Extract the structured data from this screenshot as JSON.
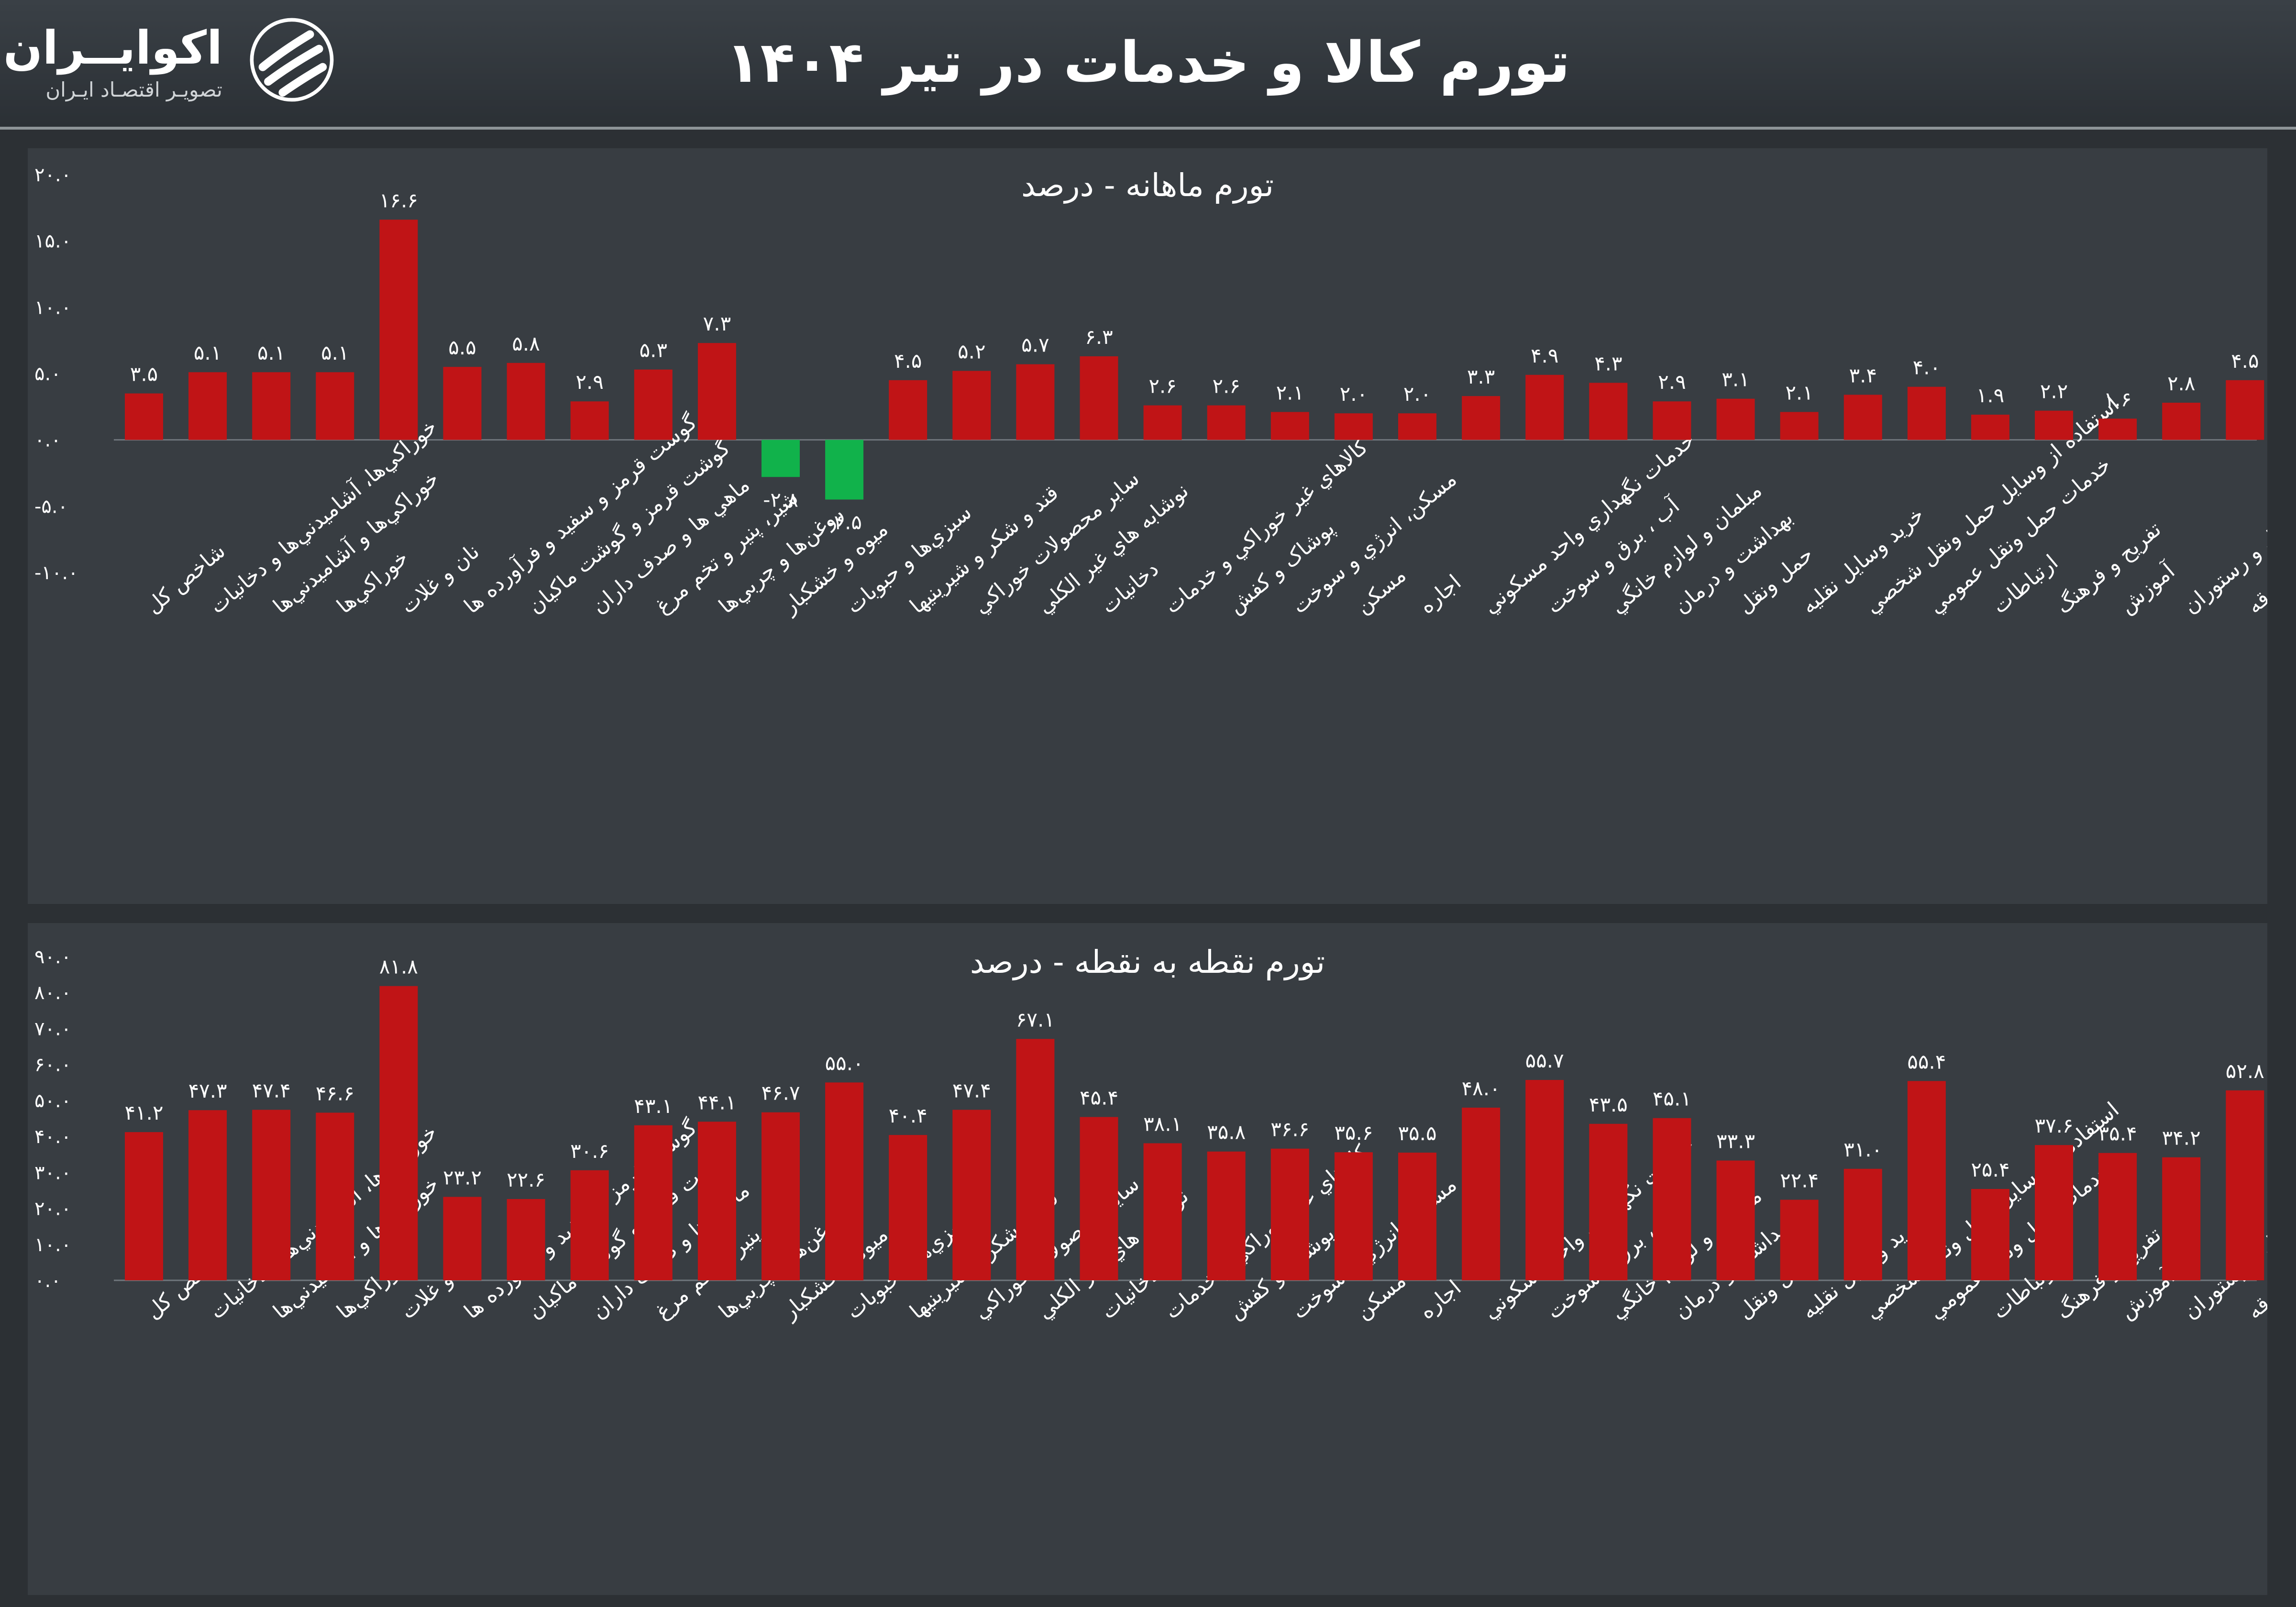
{
  "header": {
    "title": "تورم کالا و خدمات در تیر ۱۴۰۴",
    "brand_name": "اکوایــران",
    "brand_tagline": "تصویـر اقتصـاد ایـران"
  },
  "colors": {
    "positive_bar": "#c01416",
    "negative_bar": "#11b24b",
    "text": "#ffffff",
    "panel_bg": "#383d42"
  },
  "chart_data": [
    {
      "type": "bar",
      "title": "تورم ماهانه - درصد",
      "ylim": [
        -10,
        20
      ],
      "yticks": [
        -10,
        -5,
        0,
        5,
        10,
        15,
        20
      ],
      "ytick_labels": [
        "-۱۰.۰",
        "-۵.۰",
        "۰.۰",
        "۵.۰",
        "۱۰.۰",
        "۱۵.۰",
        "۲۰.۰"
      ],
      "categories": [
        "شاخص کل",
        "خوراکي‌ها، آشاميدني‌ها و دخانيات",
        "خوراکي‌ها و آشاميدني‌ها",
        "خوراکي‌ها",
        "نان و غلات",
        "گوشت قرمز و سفيد و فرآورده ها",
        "گوشت قرمز و گوشت ماکيان",
        "ماهي ها و صدف داران",
        "شير، پنير و تخم مرغ",
        "روغن‌ها و چربي‌ها",
        "ميوه و خشکبار",
        "سبزي‌ها و حبوبات",
        "قند و شکر و شيرينيها",
        "ساير محصولات خوراکي",
        "نوشابه هاي غير الکلي",
        "دخانيات",
        "کالاهاي غير خوراکي و خدمات",
        "پوشاک و کفش",
        "مسکن، انرژي و سوخت",
        "مسکن",
        "اجاره",
        "خدمات نگهداري واحد مسکوني",
        "آب ، برق و سوخت",
        "مبلمان و لوازم خانگي",
        "بهداشت و درمان",
        "حمل ونقل",
        "خريد وسايل نقليه",
        "استفاده از وسايل حمل ونقل شخصي",
        "خدمات حمل ونقل عمومي",
        "ارتباطات",
        "تفريح و فرهنگ",
        "آموزش",
        "هتل و رستوران",
        "کالاها و خدمات متفرقه"
      ],
      "values": [
        3.5,
        5.1,
        5.1,
        5.1,
        16.6,
        5.5,
        5.8,
        2.9,
        5.3,
        7.3,
        -2.8,
        -4.5,
        4.5,
        5.2,
        5.7,
        6.3,
        2.6,
        2.6,
        2.1,
        2.0,
        2.0,
        3.3,
        4.9,
        4.3,
        2.9,
        3.1,
        2.1,
        3.4,
        4.0,
        1.9,
        2.2,
        1.6,
        2.8,
        4.5
      ],
      "value_labels": [
        "۳.۵",
        "۵.۱",
        "۵.۱",
        "۵.۱",
        "۱۶.۶",
        "۵.۵",
        "۵.۸",
        "۲.۹",
        "۵.۳",
        "۷.۳",
        "-۲.۸",
        "-۴.۵",
        "۴.۵",
        "۵.۲",
        "۵.۷",
        "۶.۳",
        "۲.۶",
        "۲.۶",
        "۲.۱",
        "۲.۰",
        "۲.۰",
        "۳.۳",
        "۴.۹",
        "۴.۳",
        "۲.۹",
        "۳.۱",
        "۲.۱",
        "۳.۴",
        "۴.۰",
        "۱.۹",
        "۲.۲",
        "۱.۶",
        "۲.۸",
        "۴.۵"
      ]
    },
    {
      "type": "bar",
      "title": "تورم نقطه به نقطه - درصد",
      "ylim": [
        0,
        90
      ],
      "yticks": [
        0,
        10,
        20,
        30,
        40,
        50,
        60,
        70,
        80,
        90
      ],
      "ytick_labels": [
        "۰.۰",
        "۱۰.۰",
        "۲۰.۰",
        "۳۰.۰",
        "۴۰.۰",
        "۵۰.۰",
        "۶۰.۰",
        "۷۰.۰",
        "۸۰.۰",
        "۹۰.۰"
      ],
      "categories": [
        "شاخص کل",
        "خوراکي‌ها، آشاميدني‌ها و دخانيات",
        "خوراکي‌ها و آشاميدني‌ها",
        "خوراکي‌ها",
        "نان و غلات",
        "گوشت قرمز و سفيد و فرآورده ها",
        "گوشت قرمز و گوشت ماکيان",
        "ماهي ها و صدف داران",
        "شير، پنير و تخم مرغ",
        "روغن‌ها و چربي‌ها",
        "ميوه و خشکبار",
        "سبزي‌ها و حبوبات",
        "قند و شکر و شيرينيها",
        "ساير محصولات خوراکي",
        "نوشابه هاي غير الکلي",
        "دخانيات",
        "کالاهاي غير خوراکي و خدمات",
        "پوشاک و کفش",
        "مسکن، انرژي و سوخت",
        "مسکن",
        "اجاره",
        "خدمات نگهداري واحد مسکوني",
        "آب ، برق و سوخت",
        "مبلمان و لوازم خانگي",
        "بهداشت و درمان",
        "حمل ونقل",
        "خريد وسايل نقليه",
        "استفاده از وسايل حمل ونقل شخصي",
        "خدمات حمل ونقل عمومي",
        "ارتباطات",
        "تفريح و فرهنگ",
        "آموزش",
        "هتل و رستوران",
        "کالاها و خدمات متفرقه"
      ],
      "values": [
        41.2,
        47.3,
        47.4,
        46.6,
        81.8,
        23.2,
        22.6,
        30.6,
        43.1,
        44.1,
        46.7,
        55.0,
        40.4,
        47.4,
        67.1,
        45.4,
        38.1,
        35.8,
        36.6,
        35.6,
        35.5,
        48.0,
        55.7,
        43.5,
        45.1,
        33.3,
        22.4,
        31.0,
        55.4,
        25.4,
        37.6,
        35.4,
        34.2,
        52.8
      ],
      "value_labels": [
        "۴۱.۲",
        "۴۷.۳",
        "۴۷.۴",
        "۴۶.۶",
        "۸۱.۸",
        "۲۳.۲",
        "۲۲.۶",
        "۳۰.۶",
        "۴۳.۱",
        "۴۴.۱",
        "۴۶.۷",
        "۵۵.۰",
        "۴۰.۴",
        "۴۷.۴",
        "۶۷.۱",
        "۴۵.۴",
        "۳۸.۱",
        "۳۵.۸",
        "۳۶.۶",
        "۳۵.۶",
        "۳۵.۵",
        "۴۸.۰",
        "۵۵.۷",
        "۴۳.۵",
        "۴۵.۱",
        "۳۳.۳",
        "۲۲.۴",
        "۳۱.۰",
        "۵۵.۴",
        "۲۵.۴",
        "۳۷.۶",
        "۳۵.۴",
        "۳۴.۲",
        "۵۲.۸"
      ]
    }
  ]
}
